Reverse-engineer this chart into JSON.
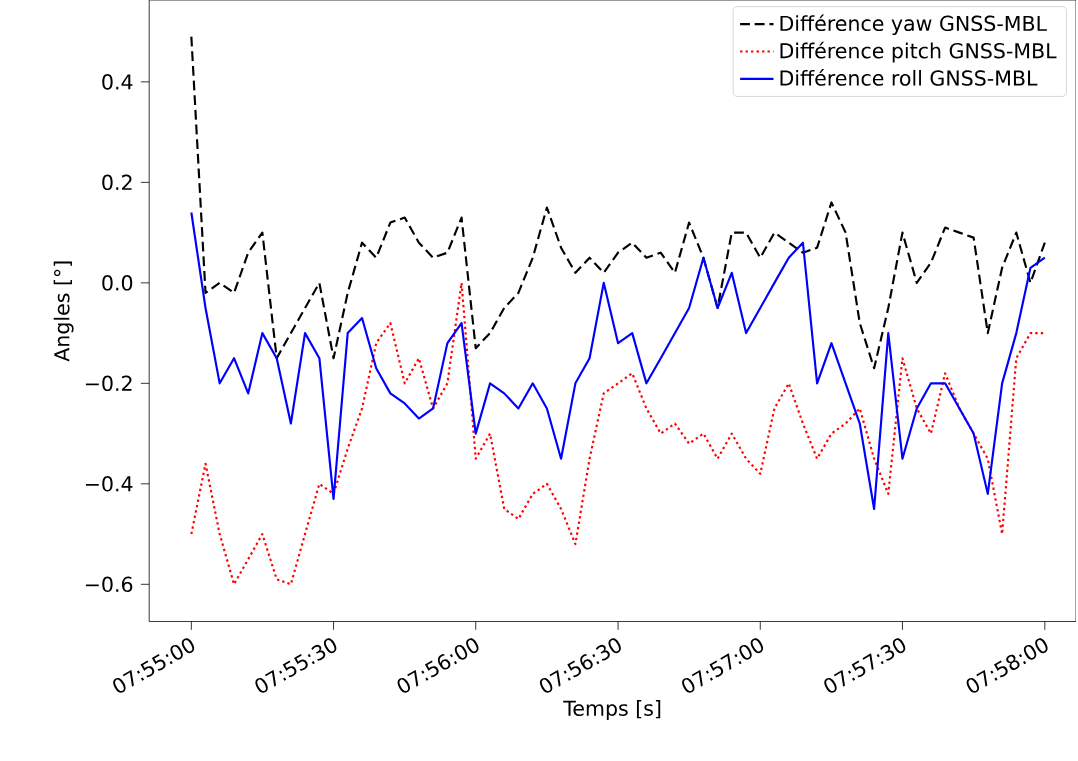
{
  "chart_data": {
    "type": "line",
    "xlabel": "Temps [s]",
    "ylabel": "Angles [°]",
    "legend": "top right",
    "grid": false,
    "marker": "none",
    "xlim": [
      7.9142,
      7.9685
    ],
    "ylim": [
      -0.674,
      0.563
    ],
    "xticks": [
      {
        "value": 7.91667,
        "label": "07:55:00"
      },
      {
        "value": 7.925,
        "label": "07:55:30"
      },
      {
        "value": 7.93333,
        "label": "07:56:00"
      },
      {
        "value": 7.94167,
        "label": "07:56:30"
      },
      {
        "value": 7.95,
        "label": "07:57:00"
      },
      {
        "value": 7.95833,
        "label": "07:57:30"
      },
      {
        "value": 7.96667,
        "label": "07:58:00"
      }
    ],
    "yticks": [
      {
        "value": -0.6,
        "label": "−0.6"
      },
      {
        "value": -0.4,
        "label": "−0.4"
      },
      {
        "value": -0.2,
        "label": "−0.2"
      },
      {
        "value": 0.0,
        "label": "0.0"
      },
      {
        "value": 0.2,
        "label": "0.2"
      },
      {
        "value": 0.4,
        "label": "0.4"
      }
    ],
    "x": [
      7.91667,
      7.9175,
      7.91833,
      7.91917,
      7.92,
      7.92083,
      7.92167,
      7.9225,
      7.92333,
      7.92417,
      7.925,
      7.92583,
      7.92667,
      7.9275,
      7.92833,
      7.92917,
      7.93,
      7.93083,
      7.93167,
      7.9325,
      7.93333,
      7.93417,
      7.935,
      7.93583,
      7.93667,
      7.9375,
      7.93833,
      7.93917,
      7.94,
      7.94083,
      7.94167,
      7.9425,
      7.94333,
      7.94417,
      7.945,
      7.94583,
      7.94667,
      7.9475,
      7.94833,
      7.94917,
      7.95,
      7.95083,
      7.95167,
      7.9525,
      7.95333,
      7.95417,
      7.955,
      7.95583,
      7.95667,
      7.9575,
      7.95833,
      7.95917,
      7.96,
      7.96083,
      7.96167,
      7.9625,
      7.96333,
      7.96417,
      7.965,
      7.96583,
      7.96667
    ],
    "series": [
      {
        "name": "Différence yaw GNSS-MBL",
        "color": "#000000",
        "line_style": "dashed",
        "values": [
          0.49,
          -0.02,
          0.0,
          -0.02,
          0.06,
          0.1,
          -0.15,
          -0.1,
          -0.05,
          0.0,
          -0.15,
          -0.02,
          0.08,
          0.05,
          0.12,
          0.13,
          0.08,
          0.05,
          0.06,
          0.13,
          -0.13,
          -0.1,
          -0.05,
          -0.02,
          0.05,
          0.15,
          0.07,
          0.02,
          0.05,
          0.02,
          0.06,
          0.08,
          0.05,
          0.06,
          0.02,
          0.12,
          0.05,
          -0.05,
          0.1,
          0.1,
          0.05,
          0.1,
          0.08,
          0.06,
          0.07,
          0.16,
          0.1,
          -0.08,
          -0.17,
          -0.05,
          0.1,
          0.0,
          0.04,
          0.11,
          0.1,
          0.09,
          -0.1,
          0.03,
          0.1,
          0.0,
          0.08
        ]
      },
      {
        "name": "Différence pitch GNSS-MBL",
        "color": "#ff0000",
        "line_style": "dotted",
        "values": [
          -0.5,
          -0.36,
          -0.5,
          -0.6,
          -0.55,
          -0.5,
          -0.59,
          -0.6,
          -0.5,
          -0.4,
          -0.42,
          -0.33,
          -0.25,
          -0.12,
          -0.08,
          -0.2,
          -0.15,
          -0.25,
          -0.2,
          0.0,
          -0.35,
          -0.3,
          -0.45,
          -0.47,
          -0.42,
          -0.4,
          -0.45,
          -0.52,
          -0.35,
          -0.22,
          -0.2,
          -0.18,
          -0.25,
          -0.3,
          -0.28,
          -0.32,
          -0.3,
          -0.35,
          -0.3,
          -0.35,
          -0.38,
          -0.25,
          -0.2,
          -0.28,
          -0.35,
          -0.3,
          -0.28,
          -0.25,
          -0.35,
          -0.42,
          -0.15,
          -0.25,
          -0.3,
          -0.18,
          -0.25,
          -0.3,
          -0.35,
          -0.5,
          -0.15,
          -0.1,
          -0.1
        ]
      },
      {
        "name": "Différence roll GNSS-MBL",
        "color": "#0000ff",
        "line_style": "solid",
        "values": [
          0.14,
          -0.05,
          -0.2,
          -0.15,
          -0.22,
          -0.1,
          -0.15,
          -0.28,
          -0.1,
          -0.15,
          -0.43,
          -0.1,
          -0.07,
          -0.17,
          -0.22,
          -0.24,
          -0.27,
          -0.25,
          -0.12,
          -0.08,
          -0.3,
          -0.2,
          -0.22,
          -0.25,
          -0.2,
          -0.25,
          -0.35,
          -0.2,
          -0.15,
          0.0,
          -0.12,
          -0.1,
          -0.2,
          -0.15,
          -0.1,
          -0.05,
          0.05,
          -0.05,
          0.02,
          -0.1,
          -0.05,
          0.0,
          0.05,
          0.08,
          -0.2,
          -0.12,
          -0.2,
          -0.28,
          -0.45,
          -0.1,
          -0.35,
          -0.25,
          -0.2,
          -0.2,
          -0.25,
          -0.3,
          -0.42,
          -0.2,
          -0.1,
          0.03,
          0.05
        ]
      }
    ]
  }
}
